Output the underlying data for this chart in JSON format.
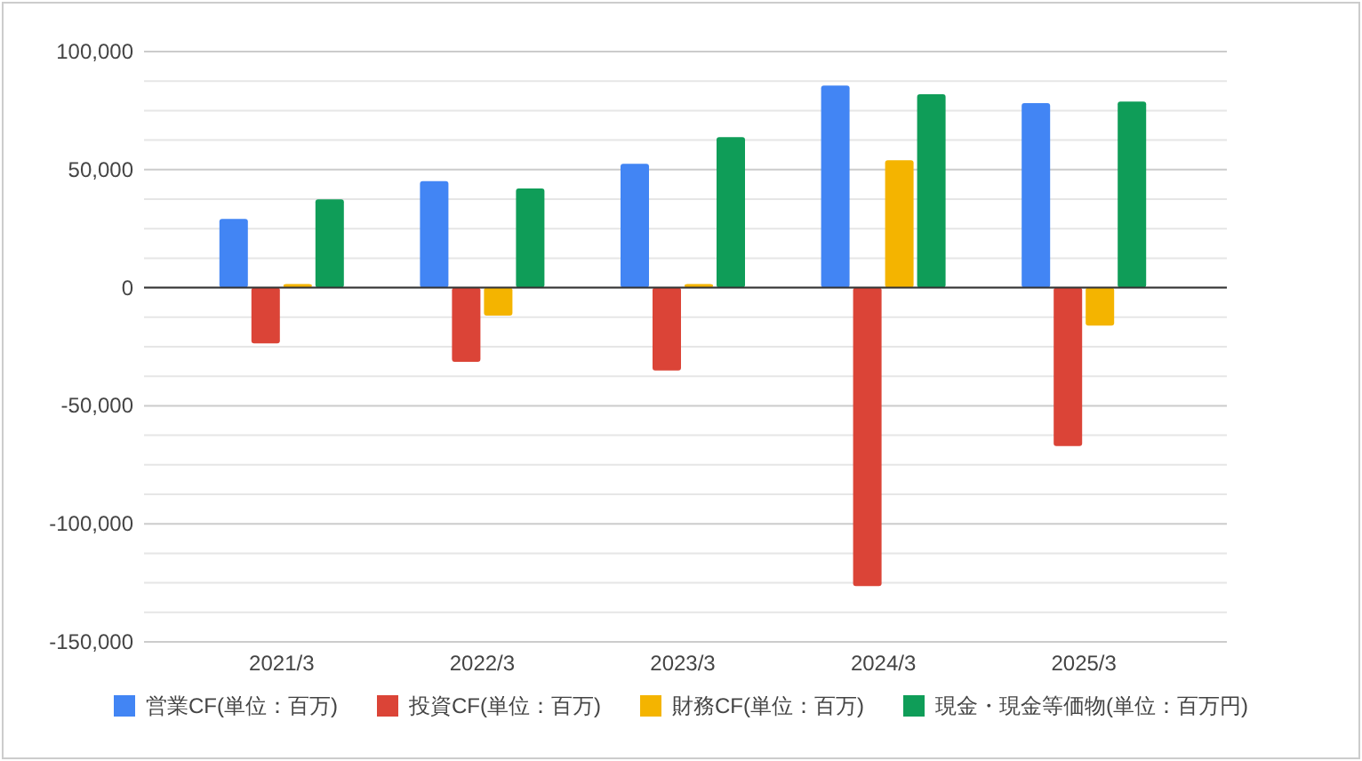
{
  "chart_data": {
    "type": "bar",
    "categories": [
      "2021/3",
      "2022/3",
      "2023/3",
      "2024/3",
      "2025/3"
    ],
    "series": [
      {
        "name": "営業CF(単位：百万)",
        "color": "#4285f4",
        "values": [
          29100,
          45100,
          52500,
          85600,
          78200
        ]
      },
      {
        "name": "投資CF(単位：百万)",
        "color": "#db4437",
        "values": [
          -23600,
          -31400,
          -35100,
          -126400,
          -67100
        ]
      },
      {
        "name": "財務CF(単位：百万)",
        "color": "#f4b400",
        "values": [
          1500,
          -11800,
          1500,
          54000,
          -16100
        ]
      },
      {
        "name": "現金・現金等価物(単位：百万円)",
        "color": "#0f9d58",
        "values": [
          37400,
          42000,
          63800,
          81900,
          78800
        ]
      }
    ],
    "ylim": [
      -150000,
      100000
    ],
    "yticks": [
      {
        "value": -150000,
        "label": "-150,000"
      },
      {
        "value": -137500,
        "label": null
      },
      {
        "value": -125000,
        "label": null
      },
      {
        "value": -112500,
        "label": null
      },
      {
        "value": -100000,
        "label": "-100,000"
      },
      {
        "value": -87500,
        "label": null
      },
      {
        "value": -75000,
        "label": null
      },
      {
        "value": -62500,
        "label": null
      },
      {
        "value": -50000,
        "label": "-50,000"
      },
      {
        "value": -37500,
        "label": null
      },
      {
        "value": -25000,
        "label": null
      },
      {
        "value": -12500,
        "label": null
      },
      {
        "value": 0,
        "label": "0"
      },
      {
        "value": 12500,
        "label": null
      },
      {
        "value": 25000,
        "label": null
      },
      {
        "value": 37500,
        "label": null
      },
      {
        "value": 50000,
        "label": "50,000"
      },
      {
        "value": 62500,
        "label": null
      },
      {
        "value": 75000,
        "label": null
      },
      {
        "value": 87500,
        "label": null
      },
      {
        "value": 100000,
        "label": "100,000"
      }
    ],
    "grid": "y",
    "legend": "bottom"
  }
}
